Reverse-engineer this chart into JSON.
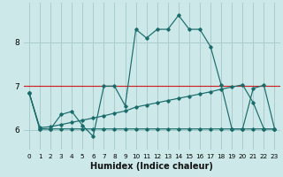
{
  "xlabel": "Humidex (Indice chaleur)",
  "bg_color": "#cce8e8",
  "grid_color": "#aacccc",
  "line_color": "#1a6b6b",
  "red_line_y": 7.0,
  "red_line_color": "#cc2222",
  "xlim": [
    -0.5,
    23.5
  ],
  "ylim": [
    5.55,
    8.9
  ],
  "yticks": [
    6,
    7,
    8
  ],
  "xtick_labels": [
    "0",
    "1",
    "2",
    "3",
    "4",
    "5",
    "6",
    "7",
    "8",
    "9",
    "10",
    "11",
    "12",
    "13",
    "14",
    "15",
    "16",
    "17",
    "18",
    "19",
    "20",
    "21",
    "22",
    "23"
  ],
  "series": [
    [
      6.85,
      6.02,
      6.02,
      6.35,
      6.42,
      6.1,
      5.85,
      7.0,
      7.0,
      6.55,
      8.3,
      8.1,
      8.3,
      8.3,
      8.62,
      8.3,
      8.3,
      7.9,
      7.02,
      6.02,
      6.02,
      6.95,
      7.02,
      6.02
    ],
    [
      6.85,
      6.02,
      6.02,
      6.02,
      6.02,
      6.02,
      6.02,
      6.02,
      6.02,
      6.02,
      6.02,
      6.02,
      6.02,
      6.02,
      6.02,
      6.02,
      6.02,
      6.02,
      6.02,
      6.02,
      6.02,
      6.02,
      6.02,
      6.02
    ],
    [
      6.85,
      6.05,
      6.07,
      6.12,
      6.17,
      6.22,
      6.27,
      6.32,
      6.38,
      6.43,
      6.52,
      6.57,
      6.62,
      6.67,
      6.72,
      6.77,
      6.82,
      6.87,
      6.93,
      6.98,
      7.03,
      6.62,
      6.02,
      6.02
    ]
  ]
}
